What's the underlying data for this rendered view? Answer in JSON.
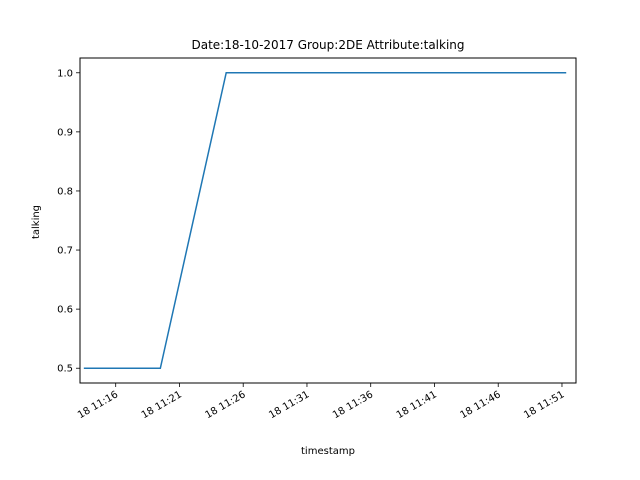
{
  "chart_data": {
    "type": "line",
    "title": "Date:18-10-2017  Group:2DE Attribute:talking",
    "xlabel": "timestamp",
    "ylabel": "talking",
    "x_tick_labels": [
      "18 11:16",
      "18 11:21",
      "18 11:26",
      "18 11:31",
      "18 11:36",
      "18 11:41",
      "18 11:46",
      "18 11:51"
    ],
    "x_tick_values": [
      "2017-10-18 11:16",
      "2017-10-18 11:21",
      "2017-10-18 11:26",
      "2017-10-18 11:31",
      "2017-10-18 11:36",
      "2017-10-18 11:41",
      "2017-10-18 11:46",
      "2017-10-18 11:51"
    ],
    "xlim": [
      "2017-10-18 11:13:12",
      "2017-10-18 11:52:06"
    ],
    "y_tick_labels": [
      "0.5",
      "0.6",
      "0.7",
      "0.8",
      "0.9",
      "1.0"
    ],
    "y_tick_values": [
      0.5,
      0.6,
      0.7,
      0.8,
      0.9,
      1.0
    ],
    "ylim": [
      0.475,
      1.025
    ],
    "grid": false,
    "series": [
      {
        "color": "#1f77b4",
        "x": [
          "2017-10-18 11:13:30",
          "2017-10-18 11:19:30",
          "2017-10-18 11:24:40",
          "2017-10-18 11:51:20"
        ],
        "y": [
          0.5,
          0.5,
          1.0,
          1.0
        ]
      }
    ]
  }
}
